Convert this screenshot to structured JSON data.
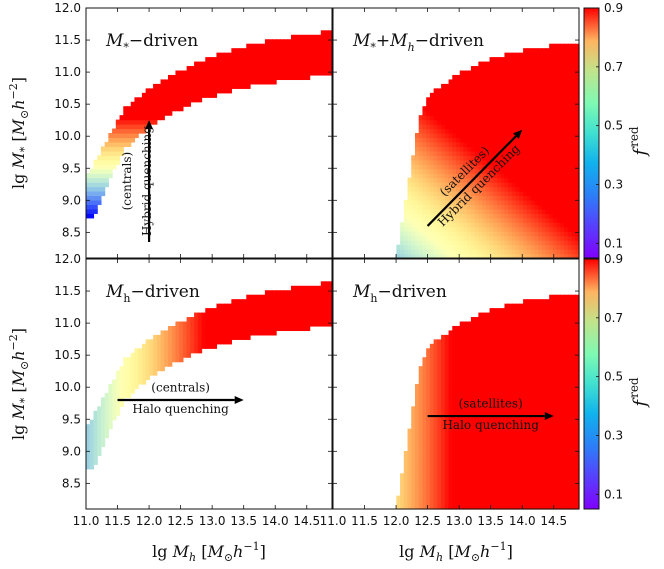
{
  "chart_data": {
    "type": "heatmap",
    "title": "",
    "xlabel": "lg M_h [M_⊙h^-1]",
    "ylabel": "lg M_* [M_⊙h^-2]",
    "xlabel_parts": {
      "main": "lg M",
      "sub": "h",
      "unit_open": "[M",
      "unit_sub": "⊙",
      "unit_h": "h",
      "unit_exp": "−1",
      "unit_close": "]"
    },
    "ylabel_parts": {
      "main": "lg M",
      "sub": "*",
      "unit_open": "[M",
      "unit_sub": "⊙",
      "unit_h": "h",
      "unit_exp": "−2",
      "unit_close": "]"
    },
    "xlim": [
      11.0,
      14.9
    ],
    "ylim": [
      8.1,
      12.0
    ],
    "x_ticks": [
      "11.0",
      "11.5",
      "12.0",
      "12.5",
      "13.0",
      "13.5",
      "14.0",
      "14.5"
    ],
    "x_tick_values": [
      11.0,
      11.5,
      12.0,
      12.5,
      13.0,
      13.5,
      14.0,
      14.5
    ],
    "y_ticks": [
      "8.5",
      "9.0",
      "9.5",
      "10.0",
      "10.5",
      "11.0",
      "11.5",
      "12.0"
    ],
    "y_tick_values": [
      8.5,
      9.0,
      9.5,
      10.0,
      10.5,
      11.0,
      11.5,
      12.0
    ],
    "colorbar": {
      "label": "f",
      "label_sup": "red",
      "range": [
        0.05,
        0.9
      ],
      "ticks": [
        "0.1",
        "0.3",
        "0.5",
        "0.7",
        "0.9"
      ],
      "tick_values": [
        0.1,
        0.3,
        0.5,
        0.7,
        0.9
      ],
      "colormap": "rainbow"
    },
    "panels": [
      {
        "id": "top-left",
        "label_parts": {
          "m": "M",
          "sub": "*",
          "rest": "−driven"
        },
        "population": "centrals",
        "shape": "central",
        "model": "stellar",
        "arrow": {
          "direction": "up",
          "from": [
            12.0,
            8.35
          ],
          "to": [
            12.0,
            10.25
          ]
        },
        "annotation": {
          "line1": "(centrals)",
          "line2": "Hybrid quenching",
          "anchor": [
            11.84,
            9.3
          ],
          "rotation": -90
        }
      },
      {
        "id": "top-right",
        "label_parts": {
          "m": "M",
          "sub": "*",
          "plus": "+",
          "m2": "M",
          "sub2": "h",
          "rest": "−driven"
        },
        "population": "satellites",
        "shape": "satellite",
        "model": "hybrid",
        "arrow": {
          "direction": "diagonal",
          "from": [
            12.5,
            8.6
          ],
          "to": [
            14.0,
            10.1
          ]
        },
        "annotation": {
          "line1": "(satellites)",
          "line2": "Hybrid quenching",
          "anchor": [
            13.22,
            9.32
          ],
          "rotation": -45
        }
      },
      {
        "id": "bottom-left",
        "label_parts": {
          "m": "M",
          "sub": "h",
          "rest": "−driven"
        },
        "population": "centrals",
        "shape": "central",
        "model": "halo",
        "arrow": {
          "direction": "right",
          "from": [
            11.5,
            9.8
          ],
          "to": [
            13.5,
            9.8
          ]
        },
        "annotation": {
          "line1": "(centrals)",
          "line2": "Halo quenching",
          "anchor1": [
            12.5,
            9.93
          ],
          "anchor2": [
            12.5,
            9.6
          ],
          "rotation": 0
        }
      },
      {
        "id": "bottom-right",
        "label_parts": {
          "m": "M",
          "sub": "h",
          "rest": "−driven"
        },
        "population": "satellites",
        "shape": "satellite",
        "model": "halo",
        "arrow": {
          "direction": "right",
          "from": [
            12.5,
            9.55
          ],
          "to": [
            14.5,
            9.55
          ]
        },
        "annotation": {
          "line1": "(satellites)",
          "line2": "Halo quenching",
          "anchor1": [
            13.5,
            9.68
          ],
          "anchor2": [
            13.5,
            9.35
          ],
          "rotation": 0
        }
      }
    ]
  }
}
